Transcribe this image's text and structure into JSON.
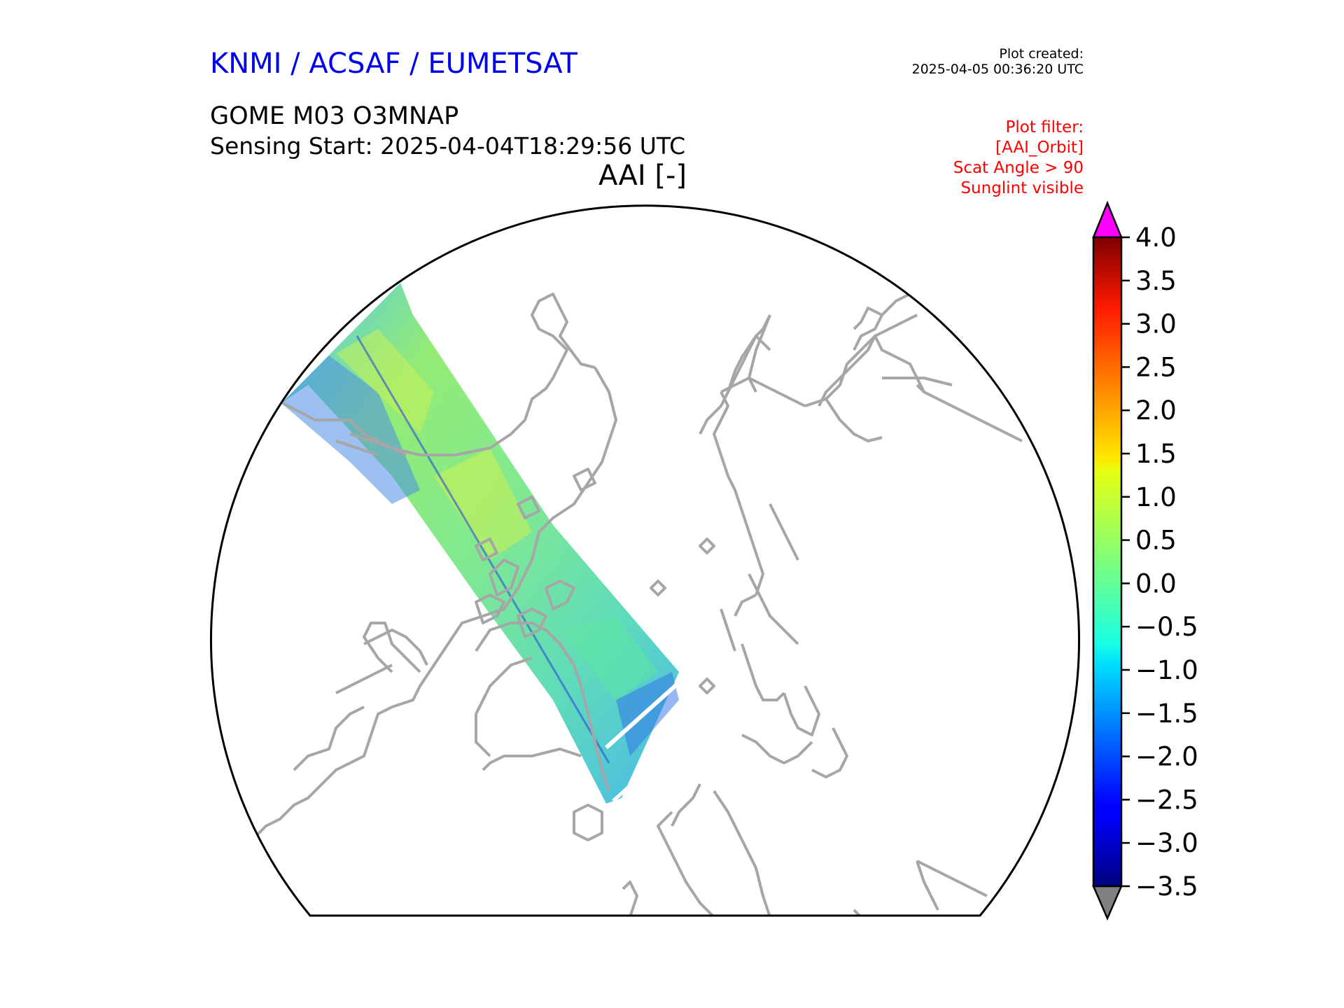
{
  "header": {
    "organization": "KNMI / ACSAF / EUMETSAT",
    "organization_color": "#0000ee",
    "plot_created_label": "Plot created:",
    "plot_created_time": "2025-04-05 00:36:20 UTC",
    "product": "GOME M03 O3MNAP",
    "sensing_start": "Sensing Start: 2025-04-04T18:29:56 UTC",
    "variable": "AAI [-]"
  },
  "plot_filter": {
    "color": "#ff0000",
    "lines": [
      "Plot filter:",
      "[AAI_Orbit]",
      "Scat Angle > 90",
      "Sunglint visible"
    ]
  },
  "colorbar": {
    "min": -3.5,
    "max": 4.0,
    "ticks": [
      "4.0",
      "3.5",
      "3.0",
      "2.5",
      "2.0",
      "1.5",
      "1.0",
      "0.5",
      "0.0",
      "−0.5",
      "−1.0",
      "−1.5",
      "−2.0",
      "−2.5",
      "−3.0",
      "−3.5"
    ],
    "over_color": "#ff00ff",
    "under_color": "#808080",
    "colormap": "jet"
  },
  "map": {
    "projection": "north-polar-stereographic",
    "coastline_color": "#a6a6a6",
    "border_color": "#000000"
  }
}
